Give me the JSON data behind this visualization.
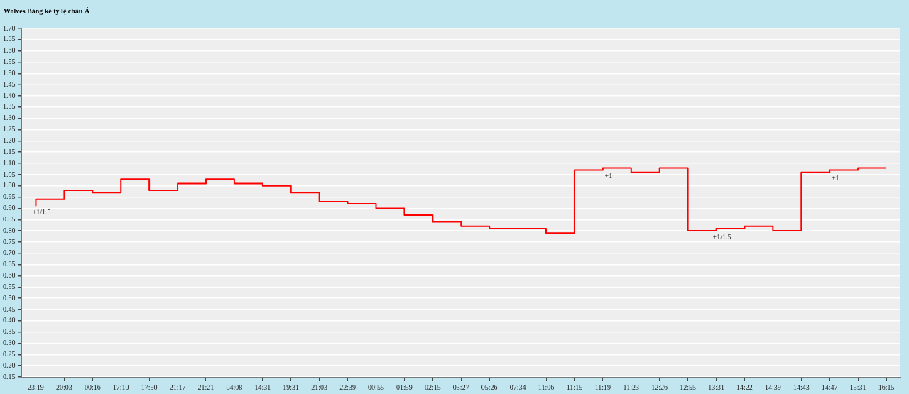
{
  "chart_data": {
    "type": "step",
    "title": "Wolves Bảng kê tỷ lệ châu Á",
    "categories": [
      "23:19",
      "20:03",
      "00:16",
      "17:10",
      "17:50",
      "21:17",
      "21:21",
      "04:08",
      "14:31",
      "19:31",
      "21:03",
      "22:39",
      "00:55",
      "01:59",
      "02:15",
      "03:27",
      "05:26",
      "07:34",
      "11:06",
      "11:15",
      "11:19",
      "11:23",
      "12:26",
      "12:55",
      "13:31",
      "14:22",
      "14:39",
      "14:43",
      "14:47",
      "15:31",
      "16:15"
    ],
    "series": [
      {
        "color": "#ff0000",
        "values": [
          0.91,
          0.94,
          0.98,
          0.97,
          1.03,
          0.98,
          1.01,
          1.03,
          1.01,
          1.0,
          0.97,
          0.93,
          0.92,
          0.9,
          0.87,
          0.84,
          0.82,
          0.81,
          0.81,
          0.79,
          1.07,
          1.08,
          1.06,
          1.08,
          0.8,
          0.81,
          0.82,
          0.8,
          1.06,
          1.07,
          1.08
        ]
      }
    ],
    "ylim": [
      0.15,
      1.7
    ],
    "yticks": [
      {
        "value": 0.15,
        "label": "0.15"
      },
      {
        "value": 0.2,
        "label": "0.20"
      },
      {
        "value": 0.25,
        "label": "0.25"
      },
      {
        "value": 0.3,
        "label": "0.30"
      },
      {
        "value": 0.35,
        "label": "0.35"
      },
      {
        "value": 0.4,
        "label": "0.40"
      },
      {
        "value": 0.45,
        "label": "0.45"
      },
      {
        "value": 0.5,
        "label": "0.50"
      },
      {
        "value": 0.55,
        "label": "0.55"
      },
      {
        "value": 0.6,
        "label": "0.60"
      },
      {
        "value": 0.65,
        "label": "0.65"
      },
      {
        "value": 0.7,
        "label": "0.70"
      },
      {
        "value": 0.75,
        "label": "0.75"
      },
      {
        "value": 0.8,
        "label": "0.80"
      },
      {
        "value": 0.85,
        "label": "0.85"
      },
      {
        "value": 0.9,
        "label": "0.90"
      },
      {
        "value": 0.95,
        "label": "0.95"
      },
      {
        "value": 1.0,
        "label": "1.00"
      },
      {
        "value": 1.05,
        "label": "1.05"
      },
      {
        "value": 1.1,
        "label": "1.10"
      },
      {
        "value": 1.15,
        "label": "1.15"
      },
      {
        "value": 1.2,
        "label": "1.20"
      },
      {
        "value": 1.25,
        "label": "1.25"
      },
      {
        "value": 1.3,
        "label": "1.30"
      },
      {
        "value": 1.35,
        "label": "1.35"
      },
      {
        "value": 1.4,
        "label": "1.40"
      },
      {
        "value": 1.45,
        "label": "1.45"
      },
      {
        "value": 1.5,
        "label": "1.50"
      },
      {
        "value": 1.55,
        "label": "1.55"
      },
      {
        "value": 1.6,
        "label": "1.60"
      },
      {
        "value": 1.65,
        "label": "1.65"
      },
      {
        "value": 1.7,
        "label": "1.70"
      }
    ],
    "annotations": [
      {
        "text": "+1/1.5",
        "x": "23:19",
        "y": 0.91
      },
      {
        "text": "+1",
        "x": "11:19",
        "y": 1.07
      },
      {
        "text": "+1/1.5",
        "x": "13:31",
        "y": 0.8
      },
      {
        "text": "+1",
        "x": "14:47",
        "y": 1.06
      }
    ],
    "grid": "y",
    "legend": false,
    "marker": "none"
  }
}
